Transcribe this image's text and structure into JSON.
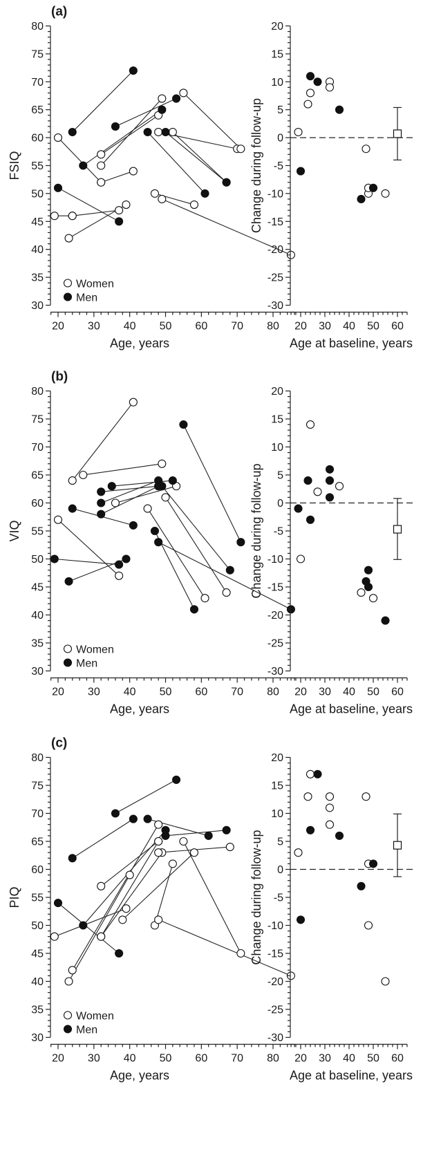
{
  "panels": [
    {
      "label": "(a)",
      "measure": "FSIQ",
      "left": {
        "ylabel": "FSIQ",
        "xlabel": "Age, years",
        "ylim": [
          30,
          80
        ],
        "yticks": [
          30,
          35,
          40,
          45,
          50,
          55,
          60,
          65,
          70,
          75,
          80
        ],
        "xlim": [
          18,
          86
        ],
        "xticks": [
          20,
          30,
          40,
          50,
          60,
          70,
          80
        ],
        "legend": {
          "women": "Women",
          "men": "Men",
          "placement": "bottom-left"
        }
      },
      "right": {
        "ylabel": "Change during follow-up",
        "xlabel": "Age at baseline, years",
        "ylim": [
          -30,
          20
        ],
        "yticks": [
          -30,
          -25,
          -20,
          -15,
          -10,
          -5,
          0,
          5,
          10,
          15,
          20
        ],
        "xlim": [
          16,
          64
        ],
        "xticks": [
          20,
          30,
          40,
          50,
          60
        ],
        "mean": {
          "x": 60,
          "y": 0.7,
          "ci": [
            -4.0,
            5.4
          ]
        }
      }
    },
    {
      "label": "(b)",
      "measure": "VIQ",
      "left": {
        "ylabel": "VIQ",
        "xlabel": "Age, years",
        "ylim": [
          30,
          80
        ],
        "yticks": [
          30,
          35,
          40,
          45,
          50,
          55,
          60,
          65,
          70,
          75,
          80
        ],
        "xlim": [
          18,
          86
        ],
        "xticks": [
          20,
          30,
          40,
          50,
          60,
          70,
          80
        ],
        "legend": {
          "women": "Women",
          "men": "Men",
          "placement": "bottom-left"
        }
      },
      "right": {
        "ylabel": "Change during follow-up",
        "xlabel": "Age at baseline, years",
        "ylim": [
          -30,
          20
        ],
        "yticks": [
          -30,
          -25,
          -20,
          -15,
          -10,
          -5,
          0,
          5,
          10,
          15,
          20
        ],
        "xlim": [
          16,
          64
        ],
        "xticks": [
          20,
          30,
          40,
          50,
          60
        ],
        "mean": {
          "x": 60,
          "y": -4.7,
          "ci": [
            -10.1,
            0.8
          ]
        }
      }
    },
    {
      "label": "(c)",
      "measure": "PIQ",
      "left": {
        "ylabel": "PIQ",
        "xlabel": "Age, years",
        "ylim": [
          30,
          80
        ],
        "yticks": [
          30,
          35,
          40,
          45,
          50,
          55,
          60,
          65,
          70,
          75,
          80
        ],
        "xlim": [
          18,
          86
        ],
        "xticks": [
          20,
          30,
          40,
          50,
          60,
          70,
          80
        ],
        "legend": {
          "women": "Women",
          "men": "Men",
          "placement": "bottom-left"
        }
      },
      "right": {
        "ylabel": "Change during follow-up",
        "xlabel": "Age at baseline, years",
        "ylim": [
          -30,
          20
        ],
        "yticks": [
          -30,
          -25,
          -20,
          -15,
          -10,
          -5,
          0,
          5,
          10,
          15,
          20
        ],
        "xlim": [
          16,
          64
        ],
        "xticks": [
          20,
          30,
          40,
          50,
          60
        ],
        "mean": {
          "x": 60,
          "y": 4.3,
          "ci": [
            -1.3,
            9.9
          ]
        }
      }
    }
  ],
  "chart_data": [
    {
      "type": "line",
      "ylabel": "FSIQ",
      "xlabel": "Age, years",
      "ylim": [
        30,
        80
      ],
      "series": [
        {
          "name": "Women",
          "marker": "open",
          "pairs": [
            [
              [
                19,
                46
              ],
              [
                24,
                46
              ]
            ],
            [
              [
                23,
                42
              ],
              [
                39,
                48
              ]
            ],
            [
              [
                24,
                46
              ],
              [
                37,
                47
              ]
            ],
            [
              [
                20,
                60
              ],
              [
                32,
                52
              ]
            ],
            [
              [
                32,
                57
              ],
              [
                48,
                64
              ]
            ],
            [
              [
                32,
                55
              ],
              [
                49,
                67
              ]
            ],
            [
              [
                32,
                52
              ],
              [
                41,
                54
              ]
            ],
            [
              [
                48,
                61
              ],
              [
                70,
                58
              ]
            ],
            [
              [
                55,
                68
              ],
              [
                71,
                58
              ]
            ],
            [
              [
                47,
                50
              ],
              [
                58,
                48
              ]
            ],
            [
              [
                49,
                49
              ],
              [
                85,
                39
              ]
            ],
            [
              [
                52,
                61
              ],
              [
                67,
                52
              ]
            ]
          ]
        },
        {
          "name": "Men",
          "marker": "filled",
          "pairs": [
            [
              [
                24,
                61
              ],
              [
                41,
                72
              ]
            ],
            [
              [
                27,
                55
              ],
              [
                49,
                65
              ]
            ],
            [
              [
                36,
                62
              ],
              [
                53,
                67
              ]
            ],
            [
              [
                45,
                61
              ],
              [
                61,
                50
              ]
            ],
            [
              [
                50,
                61
              ],
              [
                67,
                52
              ]
            ],
            [
              [
                20,
                51
              ],
              [
                37,
                45
              ]
            ]
          ]
        }
      ]
    },
    {
      "type": "scatter",
      "ylabel": "Change during follow-up",
      "xlabel": "Age at baseline, years",
      "ylim": [
        -30,
        20
      ],
      "series": [
        {
          "name": "Women",
          "marker": "open",
          "points": [
            [
              19,
              1
            ],
            [
              23,
              6
            ],
            [
              24,
              8
            ],
            [
              32,
              10
            ],
            [
              32,
              9
            ],
            [
              47,
              -2
            ],
            [
              48,
              -10
            ],
            [
              48,
              -9
            ],
            [
              55,
              -10
            ]
          ]
        },
        {
          "name": "Men",
          "marker": "filled",
          "points": [
            [
              20,
              -6
            ],
            [
              24,
              11
            ],
            [
              27,
              10
            ],
            [
              36,
              5
            ],
            [
              45,
              -11
            ],
            [
              50,
              -9
            ]
          ]
        }
      ]
    },
    {
      "type": "line",
      "ylabel": "VIQ",
      "xlabel": "Age, years",
      "ylim": [
        30,
        80
      ],
      "series": [
        {
          "name": "Women",
          "marker": "open",
          "pairs": [
            [
              [
                24,
                64
              ],
              [
                41,
                78
              ]
            ],
            [
              [
                27,
                65
              ],
              [
                49,
                67
              ]
            ],
            [
              [
                36,
                60
              ],
              [
                53,
                63
              ]
            ],
            [
              [
                45,
                59
              ],
              [
                61,
                43
              ]
            ],
            [
              [
                50,
                61
              ],
              [
                67,
                44
              ]
            ],
            [
              [
                20,
                57
              ],
              [
                37,
                47
              ]
            ]
          ]
        },
        {
          "name": "Men",
          "marker": "filled",
          "pairs": [
            [
              [
                19,
                50
              ],
              [
                37,
                49
              ]
            ],
            [
              [
                23,
                46
              ],
              [
                39,
                50
              ]
            ],
            [
              [
                24,
                59
              ],
              [
                41,
                56
              ]
            ],
            [
              [
                32,
                62
              ],
              [
                48,
                63
              ]
            ],
            [
              [
                32,
                60
              ],
              [
                48,
                64
              ]
            ],
            [
              [
                32,
                58
              ],
              [
                48,
                63
              ]
            ],
            [
              [
                35,
                63
              ],
              [
                52,
                64
              ]
            ],
            [
              [
                47,
                55
              ],
              [
                58,
                41
              ]
            ],
            [
              [
                48,
                53
              ],
              [
                85,
                41
              ]
            ],
            [
              [
                55,
                74
              ],
              [
                71,
                53
              ]
            ],
            [
              [
                49,
                63
              ],
              [
                68,
                48
              ]
            ]
          ]
        }
      ]
    },
    {
      "type": "scatter",
      "ylabel": "Change during follow-up",
      "xlabel": "Age at baseline, years",
      "ylim": [
        -30,
        20
      ],
      "series": [
        {
          "name": "Women",
          "marker": "open",
          "points": [
            [
              20,
              -10
            ],
            [
              24,
              14
            ],
            [
              27,
              2
            ],
            [
              36,
              3
            ],
            [
              45,
              -16
            ],
            [
              50,
              -17
            ]
          ]
        },
        {
          "name": "Men",
          "marker": "filled",
          "points": [
            [
              19,
              -1
            ],
            [
              23,
              4
            ],
            [
              24,
              -3
            ],
            [
              32,
              6
            ],
            [
              32,
              4
            ],
            [
              32,
              1
            ],
            [
              47,
              -14
            ],
            [
              48,
              -12
            ],
            [
              48,
              -15
            ],
            [
              55,
              -21
            ]
          ]
        }
      ]
    },
    {
      "type": "line",
      "ylabel": "PIQ",
      "xlabel": "Age, years",
      "ylim": [
        30,
        80
      ],
      "series": [
        {
          "name": "Women",
          "marker": "open",
          "pairs": [
            [
              [
                19,
                48
              ],
              [
                39,
                53
              ]
            ],
            [
              [
                23,
                40
              ],
              [
                40,
                59
              ]
            ],
            [
              [
                24,
                42
              ],
              [
                48,
                68
              ]
            ],
            [
              [
                32,
                57
              ],
              [
                48,
                65
              ]
            ],
            [
              [
                32,
                48
              ],
              [
                49,
                63
              ]
            ],
            [
              [
                32,
                48
              ],
              [
                48,
                65
              ]
            ],
            [
              [
                47,
                50
              ],
              [
                52,
                61
              ]
            ],
            [
              [
                48,
                51
              ],
              [
                85,
                41
              ]
            ],
            [
              [
                48,
                63
              ],
              [
                68,
                64
              ]
            ],
            [
              [
                55,
                65
              ],
              [
                71,
                45
              ]
            ],
            [
              [
                38,
                51
              ],
              [
                58,
                63
              ]
            ]
          ]
        },
        {
          "name": "Men",
          "marker": "filled",
          "pairs": [
            [
              [
                20,
                54
              ],
              [
                37,
                45
              ]
            ],
            [
              [
                24,
                62
              ],
              [
                41,
                69
              ]
            ],
            [
              [
                27,
                50
              ],
              [
                50,
                67
              ]
            ],
            [
              [
                36,
                70
              ],
              [
                53,
                76
              ]
            ],
            [
              [
                45,
                69
              ],
              [
                62,
                66
              ]
            ],
            [
              [
                50,
                66
              ],
              [
                67,
                67
              ]
            ]
          ]
        }
      ]
    },
    {
      "type": "scatter",
      "ylabel": "Change during follow-up",
      "xlabel": "Age at baseline, years",
      "ylim": [
        -30,
        20
      ],
      "series": [
        {
          "name": "Women",
          "marker": "open",
          "points": [
            [
              19,
              3
            ],
            [
              23,
              13
            ],
            [
              24,
              17
            ],
            [
              32,
              13
            ],
            [
              32,
              11
            ],
            [
              32,
              8
            ],
            [
              47,
              13
            ],
            [
              48,
              -10
            ],
            [
              48,
              1
            ],
            [
              55,
              -20
            ]
          ]
        },
        {
          "name": "Men",
          "marker": "filled",
          "points": [
            [
              20,
              -9
            ],
            [
              24,
              7
            ],
            [
              27,
              17
            ],
            [
              36,
              6
            ],
            [
              45,
              -3
            ],
            [
              50,
              1
            ]
          ]
        }
      ]
    }
  ]
}
